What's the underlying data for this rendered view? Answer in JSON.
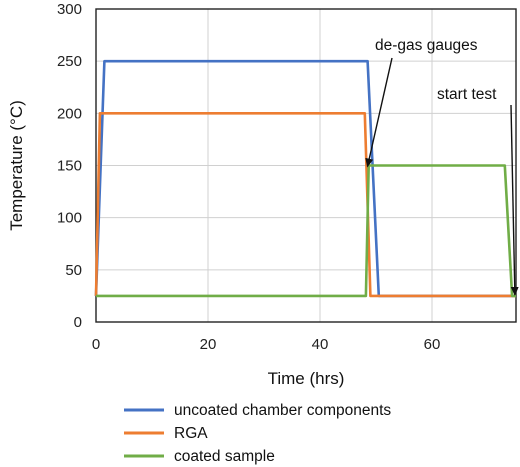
{
  "chart_data": {
    "type": "line",
    "title": "",
    "xlabel": "Time (hrs)",
    "ylabel": "Temperature (°C)",
    "xlim": [
      0,
      75
    ],
    "ylim": [
      0,
      300
    ],
    "xticks": [
      0,
      20,
      40,
      60
    ],
    "yticks": [
      0,
      50,
      100,
      150,
      200,
      250,
      300
    ],
    "grid": true,
    "legend_position": "bottom",
    "series": [
      {
        "name": "uncoated chamber components",
        "color": "#4472C4",
        "x": [
          0,
          1.5,
          48.5,
          50.5,
          75
        ],
        "y": [
          25,
          250,
          250,
          25,
          25
        ]
      },
      {
        "name": "RGA",
        "color": "#ED7D31",
        "x": [
          0,
          0.7,
          48,
          49,
          75
        ],
        "y": [
          25,
          200,
          200,
          25,
          25
        ]
      },
      {
        "name": "coated sample",
        "color": "#70AD47",
        "x": [
          0,
          48.2,
          48.7,
          73,
          74.3,
          75
        ],
        "y": [
          25,
          25,
          150,
          150,
          25,
          25
        ]
      }
    ],
    "annotations": [
      {
        "text": "de-gas gauges",
        "target_x": 48.3,
        "target_y": 150,
        "label_position": "upper-right"
      },
      {
        "text": "start test",
        "target_x": 74.8,
        "target_y": 25,
        "label_position": "upper-right"
      }
    ]
  }
}
